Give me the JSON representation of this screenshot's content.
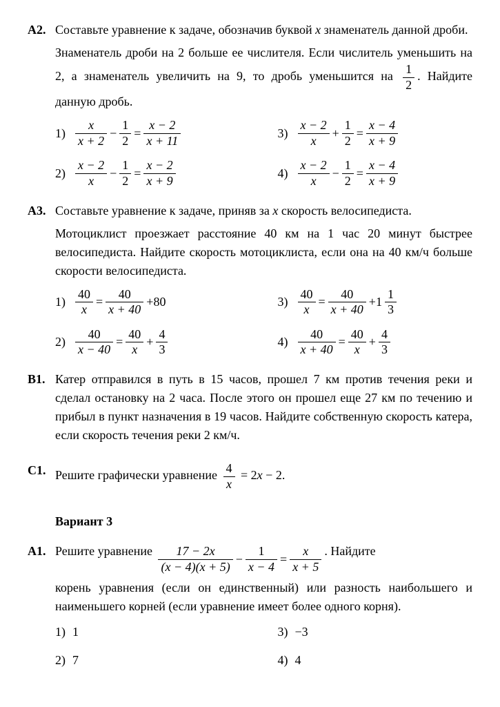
{
  "A2": {
    "label": "А2.",
    "intro": "Составьте уравнение к задаче, обозначив буквой",
    "intro_tail": "знаменатель данной дроби.",
    "desc_l1": "Знаменатель дроби на 2 больше ее числителя. Если числитель уменьшить на 2, а знаменатель увеличить на 9, то дробь уменьшится на",
    "desc_half_num": "1",
    "desc_half_den": "2",
    "desc_l2": ". Найдите данную дробь.",
    "var_x": "x",
    "opts": {
      "1": {
        "n": "1)",
        "a_n": "x",
        "a_d": "x + 2",
        "op": "−",
        "b_n": "1",
        "b_d": "2",
        "eq": "=",
        "c_n": "x − 2",
        "c_d": "x + 11"
      },
      "2": {
        "n": "2)",
        "a_n": "x − 2",
        "a_d": "x",
        "op": "−",
        "b_n": "1",
        "b_d": "2",
        "eq": "=",
        "c_n": "x − 2",
        "c_d": "x + 9"
      },
      "3": {
        "n": "3)",
        "a_n": "x − 2",
        "a_d": "x",
        "op": "+",
        "b_n": "1",
        "b_d": "2",
        "eq": "=",
        "c_n": "x − 4",
        "c_d": "x + 9"
      },
      "4": {
        "n": "4)",
        "a_n": "x − 2",
        "a_d": "x",
        "op": "−",
        "b_n": "1",
        "b_d": "2",
        "eq": "=",
        "c_n": "x − 4",
        "c_d": "x + 9"
      }
    }
  },
  "A3": {
    "label": "А3.",
    "intro_a": "Составьте уравнение к задаче, приняв за",
    "intro_b": "скорость велосипедиста.",
    "desc": "Мотоциклист проезжает расстояние 40 км на 1 час 20 минут быстрее велосипедиста. Найдите скорость мотоциклиста, если она на 40 км/ч больше скорости велосипедиста.",
    "var_x": "x",
    "opts": {
      "1": {
        "n": "1)",
        "a_n": "40",
        "a_d": "x",
        "eq": "=",
        "b_n": "40",
        "b_d": "x + 40",
        "op": "+",
        "c": "80",
        "is_mixed": false,
        "is_simple": true
      },
      "2": {
        "n": "2)",
        "a_n": "40",
        "a_d": "x − 40",
        "eq": "=",
        "b_n": "40",
        "b_d": "x",
        "op": "+",
        "c_n": "4",
        "c_d": "3",
        "is_mixed": false,
        "is_simple": false
      },
      "3": {
        "n": "3)",
        "a_n": "40",
        "a_d": "x",
        "eq": "=",
        "b_n": "40",
        "b_d": "x + 40",
        "op": "+",
        "m_int": "1",
        "c_n": "1",
        "c_d": "3",
        "is_mixed": true,
        "is_simple": false
      },
      "4": {
        "n": "4)",
        "a_n": "40",
        "a_d": "x + 40",
        "eq": "=",
        "b_n": "40",
        "b_d": "x",
        "op": "+",
        "c_n": "4",
        "c_d": "3",
        "is_mixed": false,
        "is_simple": false
      }
    }
  },
  "B1": {
    "label": "В1.",
    "text": "Катер отправился в путь в 15 часов, прошел 7 км против течения реки и сделал остановку на 2 часа. После этого он прошел еще 27 км по течению и прибыл в пункт назначения в 19 часов. Найдите собственную скорость катера, если скорость течения реки 2 км/ч."
  },
  "C1": {
    "label": "С1.",
    "text_a": "Решите графически уравнение",
    "f_n": "4",
    "f_d": "x",
    "eq": "= 2",
    "x": "x",
    "tail": " − 2."
  },
  "variant": "Вариант 3",
  "A1": {
    "label": "А1.",
    "text_a": "Решите уравнение",
    "f1_n": "17 − 2x",
    "f1_d": "(x − 4)(x + 5)",
    "op1": "−",
    "f2_n": "1",
    "f2_d": "x − 4",
    "eq": "=",
    "f3_n": "x",
    "f3_d": "x + 5",
    "text_b": ". Найдите",
    "text_c": "корень уравнения (если он единственный) или разность наибольшего и наименьшего корней (если уравнение имеет более одного корня).",
    "opts": {
      "1": {
        "n": "1)",
        "v": "1"
      },
      "2": {
        "n": "2)",
        "v": "7"
      },
      "3": {
        "n": "3)",
        "v": "−3"
      },
      "4": {
        "n": "4)",
        "v": "4"
      }
    }
  }
}
